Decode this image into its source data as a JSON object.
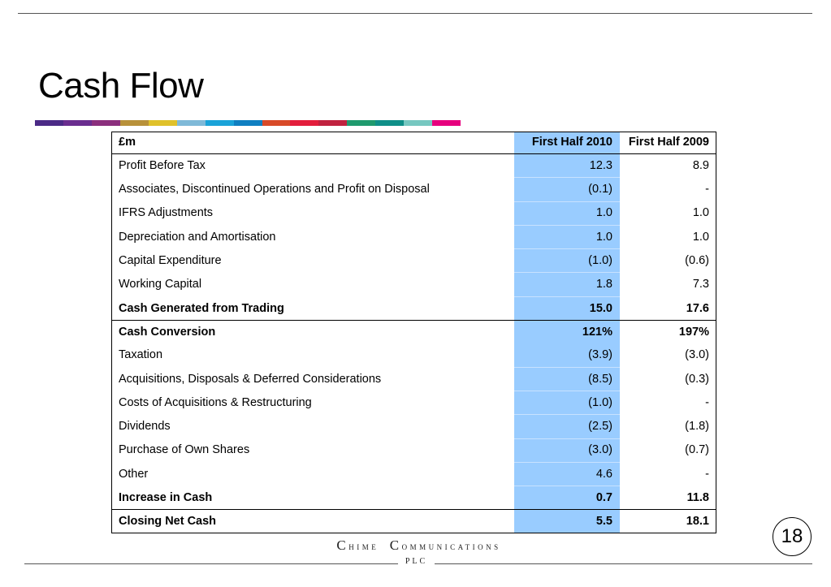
{
  "title": "Cash Flow",
  "brand": {
    "name_first_letter_1": "C",
    "name_rest_1": "hime",
    "name_first_letter_2": "C",
    "name_rest_2": "ommunications",
    "suffix": "PLC"
  },
  "page_number": "18",
  "colors": {
    "highlight_column": "#99ccff",
    "stripe": [
      "#4b2a86",
      "#6a2d8f",
      "#8b2f7d",
      "#b8913a",
      "#e0c12a",
      "#7fb9d8",
      "#1aa3d9",
      "#0f7fc1",
      "#d84a28",
      "#e31d3c",
      "#c0223f",
      "#1f9a6e",
      "#0f8f88",
      "#76c7c0",
      "#e6007e"
    ]
  },
  "table": {
    "header": {
      "label": "£m",
      "col_2010": "First Half 2010",
      "col_2009": "First Half 2009"
    },
    "rows": [
      {
        "label": "Profit Before Tax",
        "v2010": "12.3",
        "v2009": "8.9"
      },
      {
        "label": "Associates, Discontinued Operations and Profit on Disposal",
        "v2010": "(0.1)",
        "v2009": "-"
      },
      {
        "label": "IFRS Adjustments",
        "v2010": "1.0",
        "v2009": "1.0"
      },
      {
        "label": "Depreciation and Amortisation",
        "v2010": "1.0",
        "v2009": "1.0"
      },
      {
        "label": "Capital Expenditure",
        "v2010": "(1.0)",
        "v2009": "(0.6)"
      },
      {
        "label": "Working Capital",
        "v2010": "1.8",
        "v2009": "7.3"
      },
      {
        "label": "Cash Generated from Trading",
        "v2010": "15.0",
        "v2009": "17.6"
      },
      {
        "label": "Cash Conversion",
        "v2010": "121%",
        "v2009": "197%"
      },
      {
        "label": "Taxation",
        "v2010": "(3.9)",
        "v2009": "(3.0)"
      },
      {
        "label": "Acquisitions, Disposals & Deferred Considerations",
        "v2010": "(8.5)",
        "v2009": "(0.3)"
      },
      {
        "label": "Costs of Acquisitions & Restructuring",
        "v2010": "(1.0)",
        "v2009": "-"
      },
      {
        "label": "Dividends",
        "v2010": "(2.5)",
        "v2009": "(1.8)"
      },
      {
        "label": "Purchase of Own Shares",
        "v2010": "(3.0)",
        "v2009": "(0.7)"
      },
      {
        "label": "Other",
        "v2010": "4.6",
        "v2009": "-"
      },
      {
        "label": "Increase in Cash",
        "v2010": "0.7",
        "v2009": "11.8"
      },
      {
        "label": "Closing Net Cash",
        "v2010": "5.5",
        "v2009": "18.1"
      }
    ]
  }
}
